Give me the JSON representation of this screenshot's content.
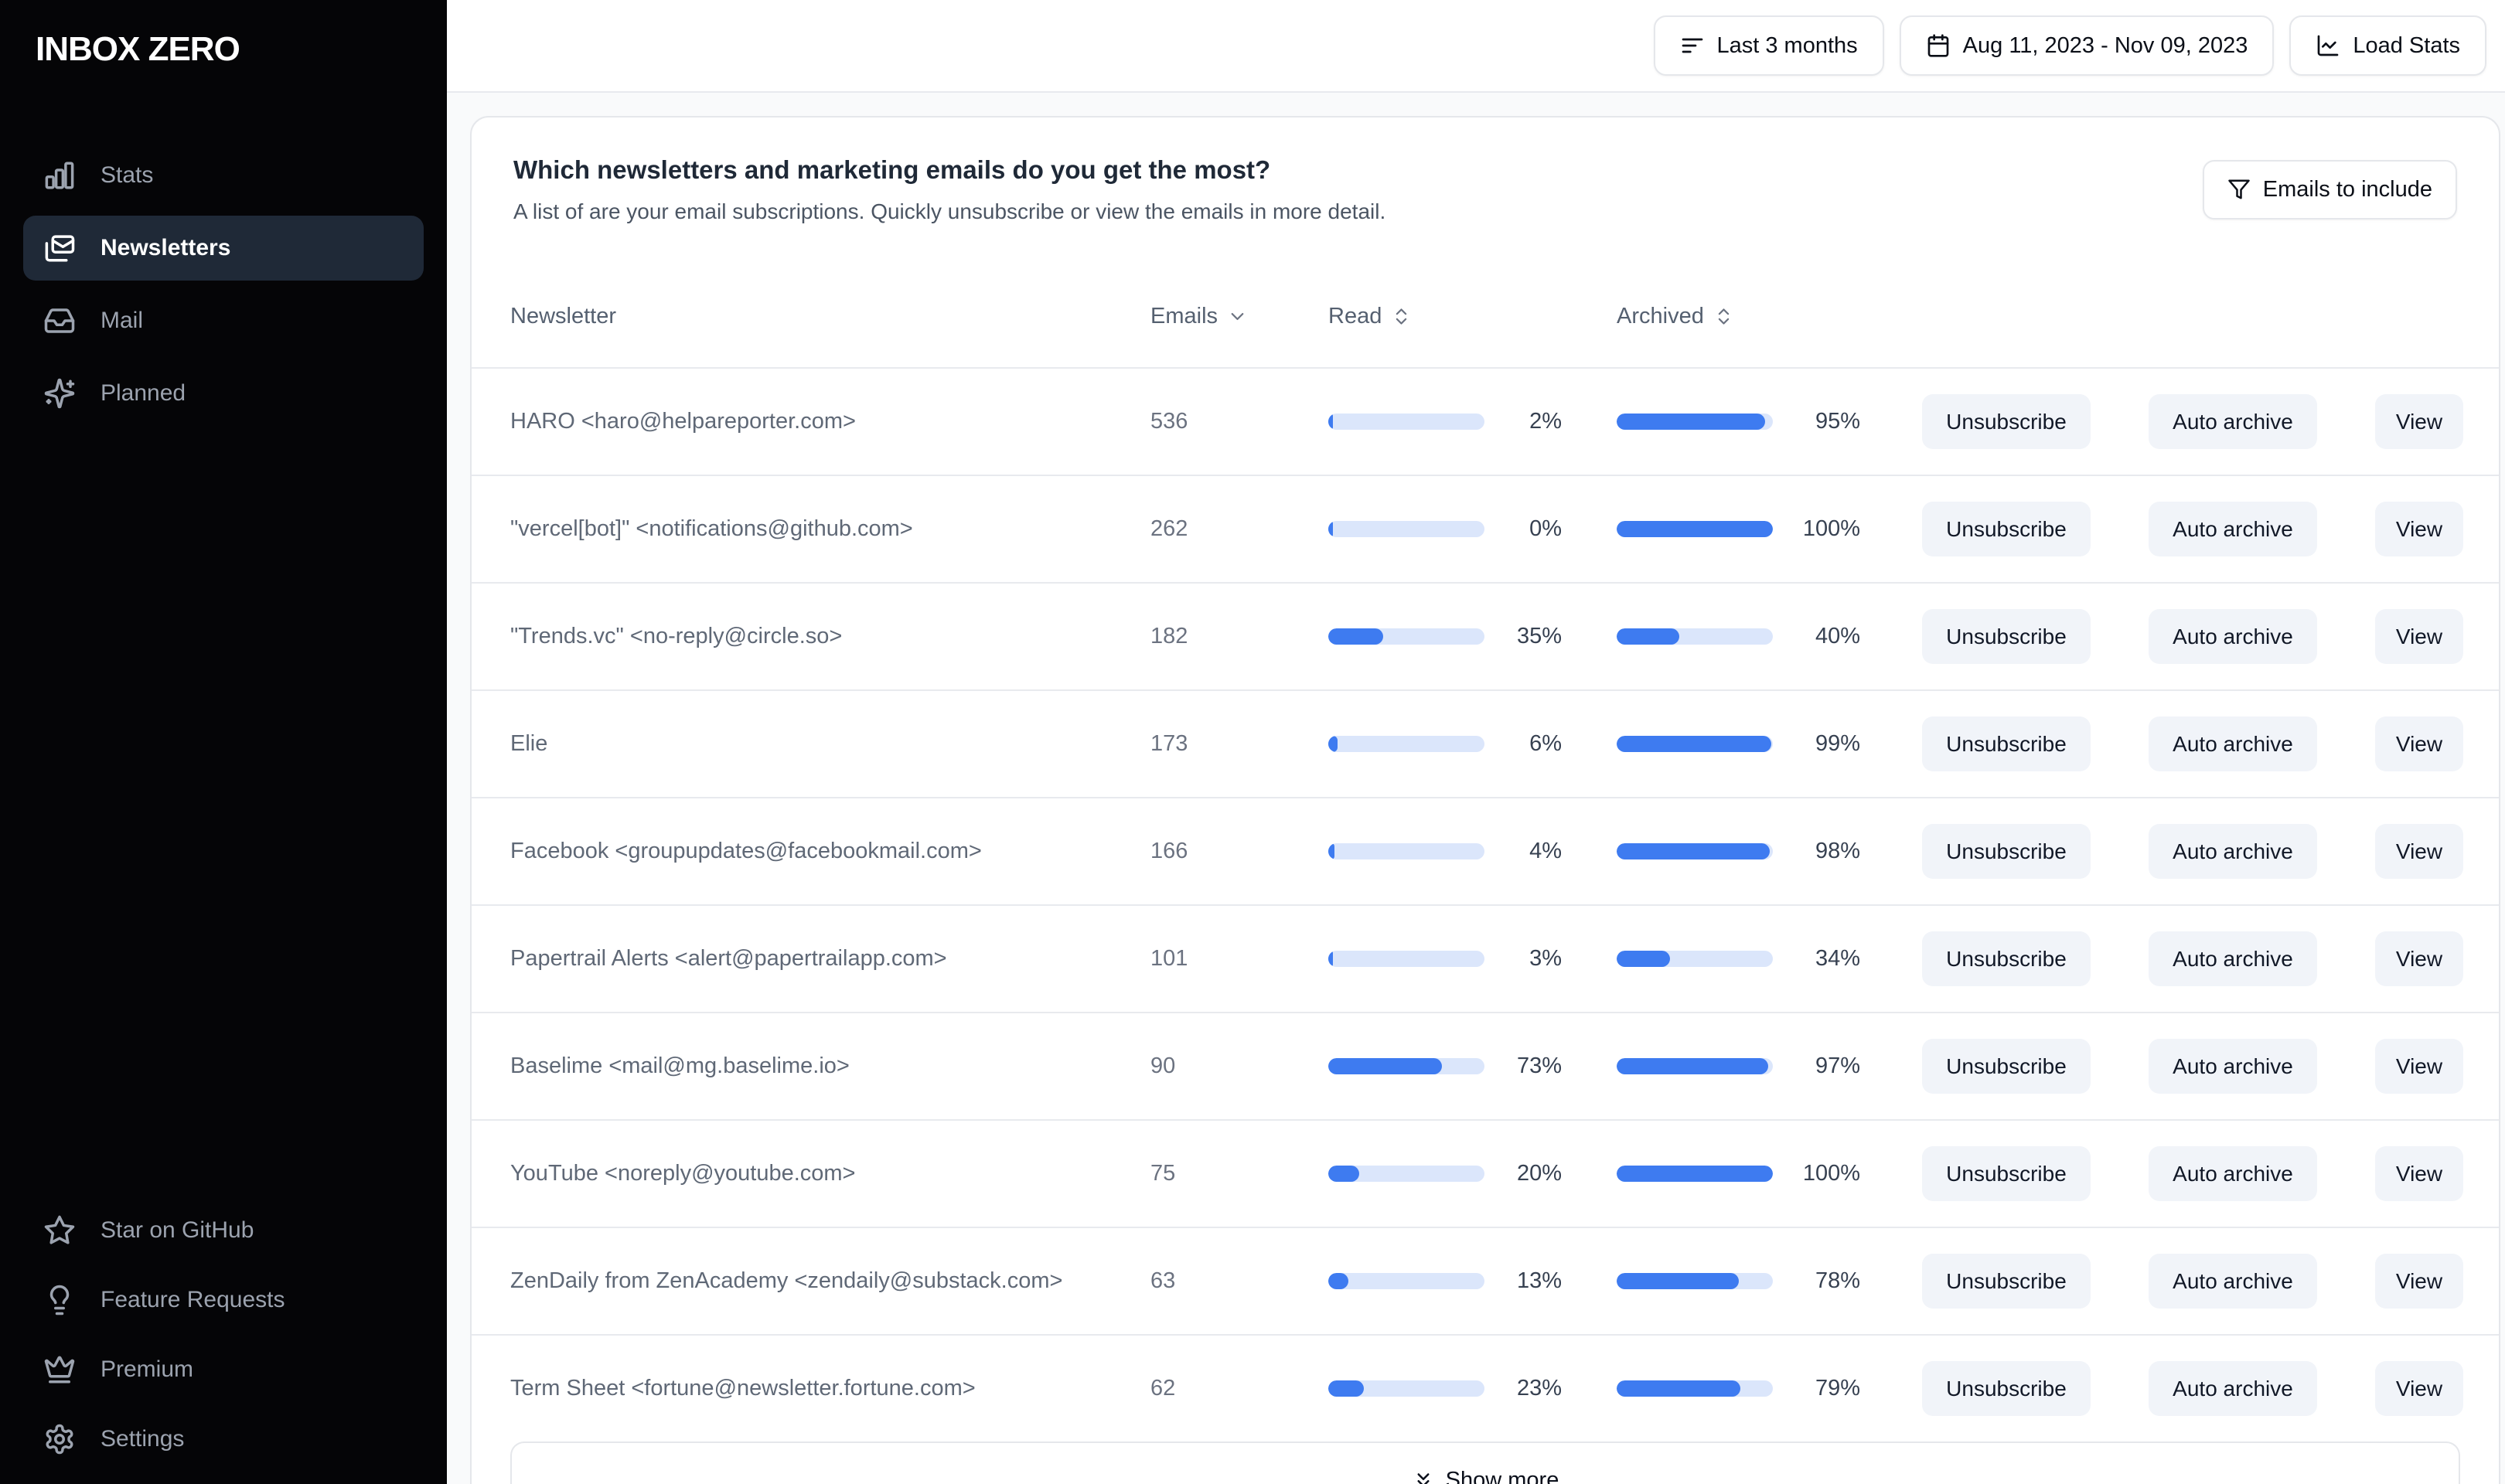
{
  "sidebar": {
    "logo": "INBOX ZERO",
    "nav": [
      {
        "label": "Stats",
        "icon": "bar-chart-icon",
        "active": false
      },
      {
        "label": "Newsletters",
        "icon": "mails-icon",
        "active": true
      },
      {
        "label": "Mail",
        "icon": "inbox-icon",
        "active": false
      },
      {
        "label": "Planned",
        "icon": "sparkles-icon",
        "active": false
      }
    ],
    "footer_nav": [
      {
        "label": "Star on GitHub",
        "icon": "star-icon"
      },
      {
        "label": "Feature Requests",
        "icon": "lightbulb-icon"
      },
      {
        "label": "Premium",
        "icon": "crown-icon"
      },
      {
        "label": "Settings",
        "icon": "gear-icon"
      }
    ]
  },
  "topbar": {
    "range_button": "Last 3 months",
    "date_button": "Aug 11, 2023 - Nov 09, 2023",
    "load_stats_button": "Load Stats"
  },
  "newsletters_card": {
    "title": "Which newsletters and marketing emails do you get the most?",
    "subtitle": "A list of are your email subscriptions. Quickly unsubscribe or view the emails in more detail.",
    "filter_button": "Emails to include",
    "columns": {
      "newsletter": "Newsletter",
      "emails": "Emails",
      "read": "Read",
      "archived": "Archived"
    },
    "actions": {
      "unsubscribe": "Unsubscribe",
      "auto_archive": "Auto archive",
      "view": "View"
    },
    "show_more": "Show more",
    "rows": [
      {
        "name": "HARO <haro@helpareporter.com>",
        "emails": 536,
        "read_pct": 2,
        "archived_pct": 95
      },
      {
        "name": "\"vercel[bot]\" <notifications@github.com>",
        "emails": 262,
        "read_pct": 0,
        "archived_pct": 100
      },
      {
        "name": "\"Trends.vc\" <no-reply@circle.so>",
        "emails": 182,
        "read_pct": 35,
        "archived_pct": 40
      },
      {
        "name": "Elie",
        "emails": 173,
        "read_pct": 6,
        "archived_pct": 99
      },
      {
        "name": "Facebook <groupupdates@facebookmail.com>",
        "emails": 166,
        "read_pct": 4,
        "archived_pct": 98
      },
      {
        "name": "Papertrail Alerts <alert@papertrailapp.com>",
        "emails": 101,
        "read_pct": 3,
        "archived_pct": 34
      },
      {
        "name": "Baselime <mail@mg.baselime.io>",
        "emails": 90,
        "read_pct": 73,
        "archived_pct": 97
      },
      {
        "name": "YouTube <noreply@youtube.com>",
        "emails": 75,
        "read_pct": 20,
        "archived_pct": 100
      },
      {
        "name": "ZenDaily from ZenAcademy <zendaily@substack.com>",
        "emails": 63,
        "read_pct": 13,
        "archived_pct": 78
      },
      {
        "name": "Term Sheet <fortune@newsletter.fortune.com>",
        "emails": 62,
        "read_pct": 23,
        "archived_pct": 79
      }
    ]
  },
  "colors": {
    "accent_blue": "#3e7bf0",
    "bar_track": "#dbe6fb",
    "sidebar_bg": "#050507",
    "active_item_bg": "#1f2937",
    "card_border": "#e5e7eb"
  }
}
